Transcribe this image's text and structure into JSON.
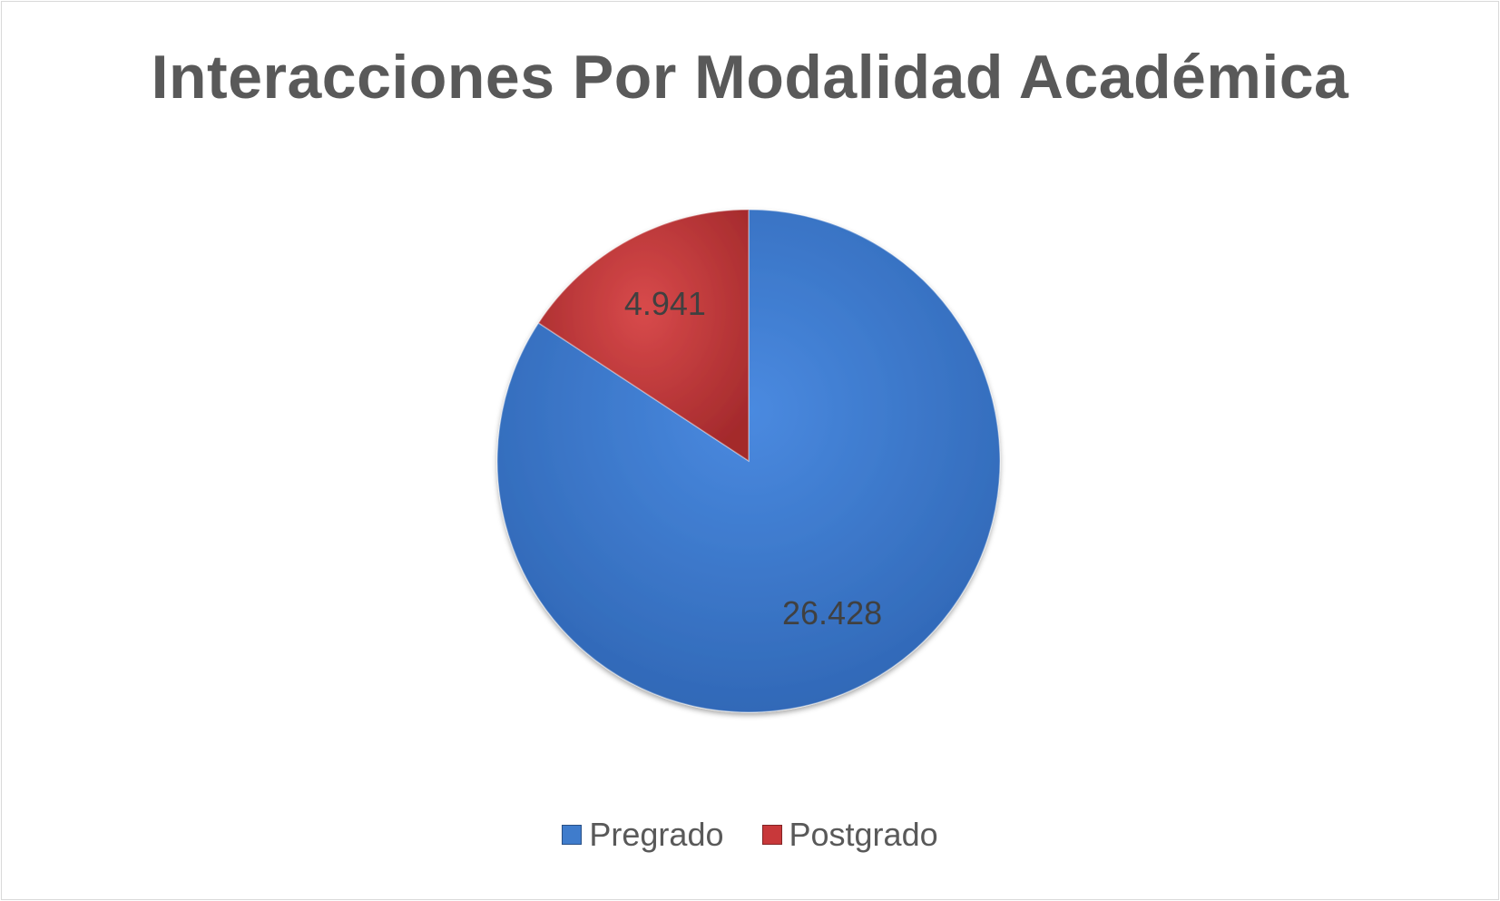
{
  "chart_data": {
    "type": "pie",
    "title": "Interacciones Por Modalidad Académica",
    "categories": [
      "Pregrado",
      "Postgrado"
    ],
    "values": [
      26428,
      4941
    ],
    "value_labels": [
      "26.428",
      "4.941"
    ],
    "colors": [
      "#3f7ccc",
      "#c8383a"
    ],
    "legend_position": "bottom"
  }
}
